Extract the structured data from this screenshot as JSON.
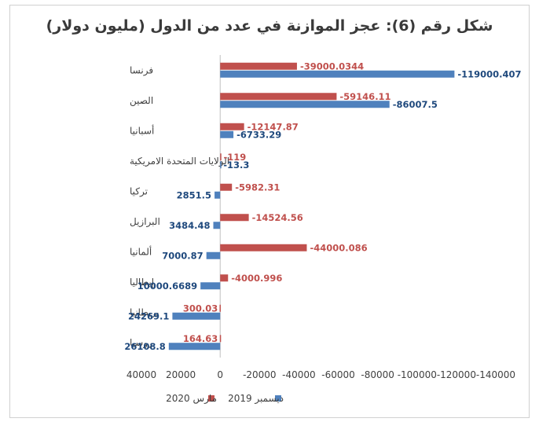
{
  "title": "شكل رقم (6): عجز الموازنة في عدد من الدول (مليون دولار)",
  "colors": {
    "march2020": "#c0504d",
    "dec2019": "#4f81bd",
    "march2020_text": "#c0504d",
    "dec2019_text": "#1f497d"
  },
  "chart_data": {
    "type": "bar",
    "orientation": "horizontal",
    "title": "شكل رقم (6): عجز الموازنة في عدد من الدول (مليون دولار)",
    "categories": [
      "فرنسا",
      "الصين",
      "أسبانيا",
      "الولايات المتحدة الامريكية",
      "تركيا",
      "البرازيل",
      "ألمانيا",
      "إيطاليا",
      "بريطانيا",
      "روسيا"
    ],
    "series": [
      {
        "name": "مارس 2020",
        "values": [
          -39000.0344,
          -59146.11,
          -12147.87,
          -119,
          -5982.31,
          -14524.56,
          -44000.086,
          -4000.996,
          300.03,
          164.63
        ],
        "labels": [
          "-39000.0344",
          "-59146.11",
          "-12147.87",
          "-119",
          "-5982.31",
          "-14524.56",
          "-44000.086",
          "-4000.996",
          "300.03",
          "164.63"
        ]
      },
      {
        "name": "ديسمبر 2019",
        "values": [
          -119000.407,
          -86007.5,
          -6733.29,
          -13.3,
          2851.5,
          3484.48,
          7000.87,
          10000.6689,
          24269.1,
          26108.8
        ],
        "labels": [
          "-119000.407",
          "-86007.5",
          "-6733.29",
          "-13.3",
          "2851.5",
          "3484.48",
          "7000.87",
          "10000.6689",
          "24269.1",
          "26108.8"
        ]
      }
    ],
    "xlim": [
      40000,
      -140000
    ],
    "x_ticks": [
      40000,
      20000,
      0,
      -20000,
      -40000,
      -60000,
      -80000,
      -100000,
      -120000,
      -140000
    ],
    "x_tick_labels": [
      "40000",
      "20000",
      "0",
      "-20000",
      "-40000",
      "-60000",
      "-80000",
      "-100000",
      "-120000",
      "-140000"
    ],
    "legend": {
      "position": "bottom",
      "entries": [
        "مارس 2020",
        "ديسمبر 2019"
      ]
    }
  }
}
